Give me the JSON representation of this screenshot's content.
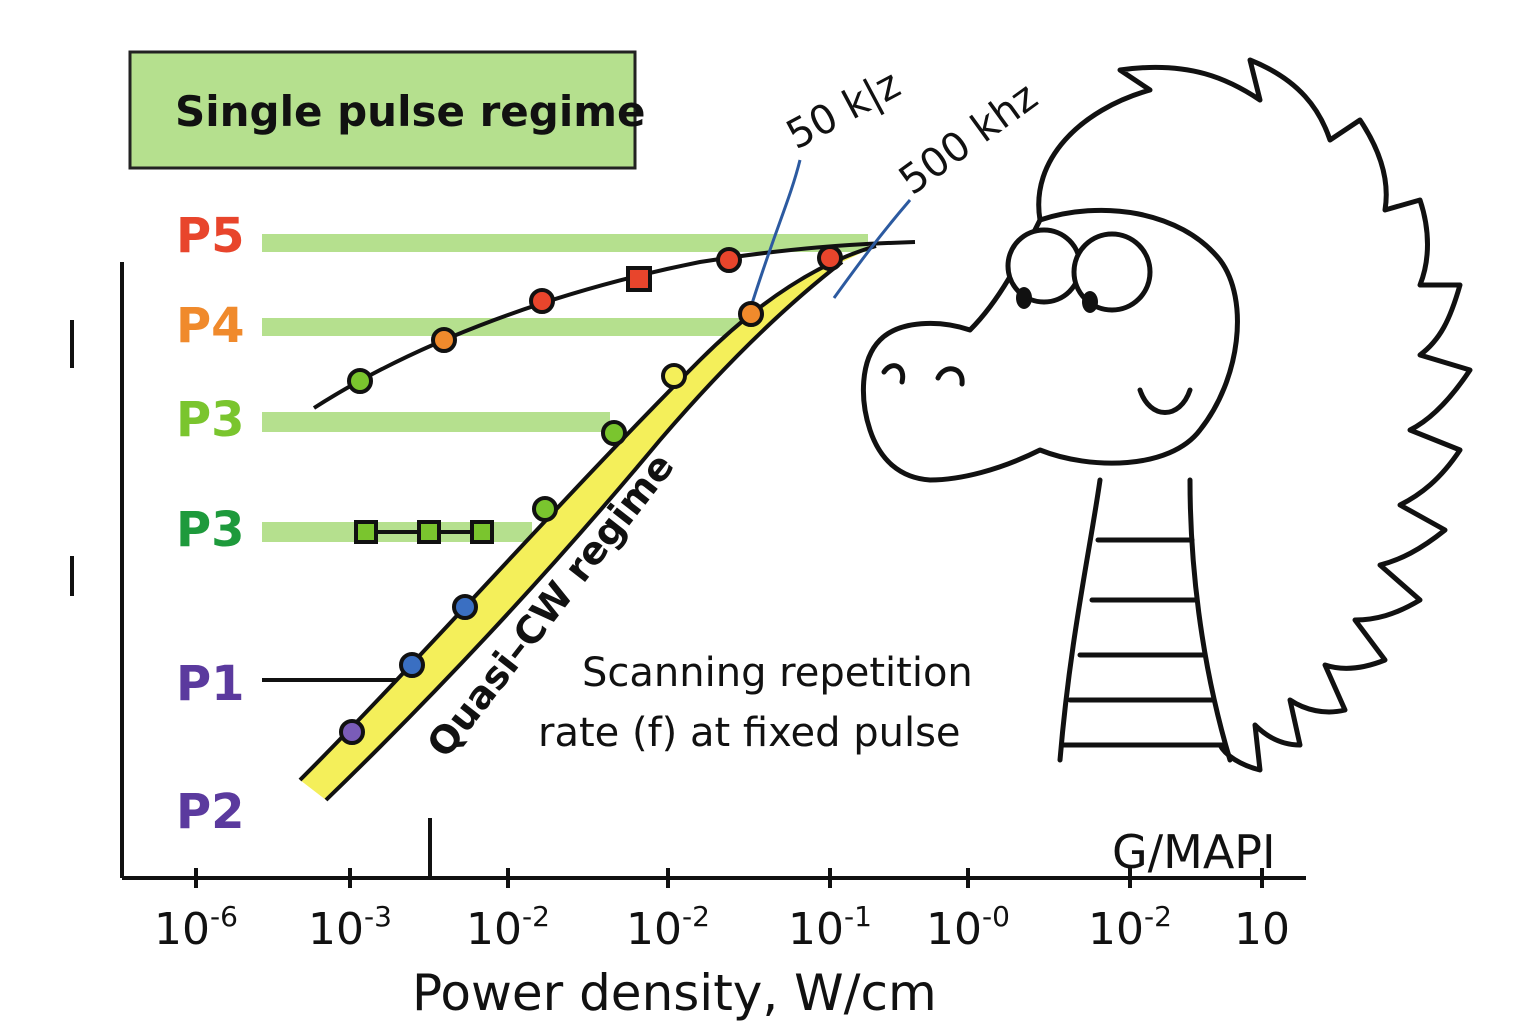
{
  "chart_data": {
    "type": "scatter",
    "title": "Single pulse regime",
    "xlabel": "Power density, W/cm",
    "x_ticks": [
      {
        "base": "10",
        "exp": "-6"
      },
      {
        "base": "10",
        "exp": "-3"
      },
      {
        "base": "10",
        "exp": "-2"
      },
      {
        "base": "10",
        "exp": "-2"
      },
      {
        "base": "10",
        "exp": "-1"
      },
      {
        "base": "10",
        "exp": "-0"
      },
      {
        "base": "10",
        "exp": "-2"
      },
      {
        "base": "10",
        "exp": ""
      }
    ],
    "x_scale": "log",
    "levels": [
      {
        "label": "P5",
        "color": "#e8452c"
      },
      {
        "label": "P4",
        "color": "#f08a2c"
      },
      {
        "label": "P3",
        "color": "#7ac52e"
      },
      {
        "label": "P3",
        "color": "#1e9a3c"
      },
      {
        "label": "P1",
        "color": "#5b3a9e"
      },
      {
        "label": "P2",
        "color": "#5b3a9e"
      }
    ],
    "annotations": {
      "rate_low": "50 k|z",
      "rate_high": "500 khz",
      "regime": "Quasi–CW regime",
      "note_line1": "Scanning repetition",
      "note_line2": "rate (f) at fixed pulse",
      "material": "G/MAPI"
    },
    "series": [
      {
        "marker": "circle",
        "level": [
          "P3",
          "P4",
          "P5",
          "P5",
          "P5"
        ],
        "points": 5
      },
      {
        "marker": "circle",
        "level": [
          "P2",
          "P1",
          "P1",
          "P3",
          "P3",
          "P3",
          "P4",
          "P5"
        ],
        "points": 8
      },
      {
        "marker": "square",
        "level": [
          "P3",
          "P3",
          "P3"
        ],
        "points": 3
      }
    ],
    "grid": false,
    "legend": "none"
  },
  "colors": {
    "band": "#b5e08e",
    "title_box": "#b5e08e",
    "curve_fill": "#f4ef5a",
    "line_blue": "#2c5aa0",
    "orange": "#f08a2c",
    "red": "#e8452c",
    "green": "#7ac52e",
    "dark_green": "#1e9a3c",
    "blue": "#3a6fc2",
    "purple": "#7a5cb8",
    "yellow": "#f4ef5a"
  }
}
